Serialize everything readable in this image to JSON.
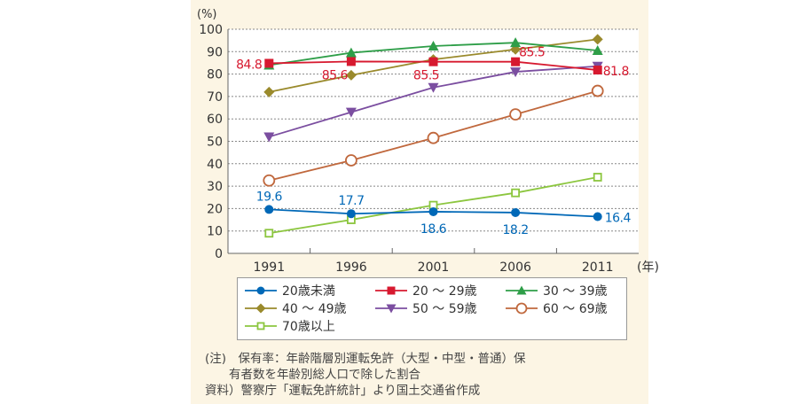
{
  "chart_data": {
    "type": "line",
    "y_unit_label": "(%)",
    "x_unit_label": "(年)",
    "categories": [
      "1991",
      "1996",
      "2001",
      "2006",
      "2011"
    ],
    "ylim": [
      0,
      100
    ],
    "yticks": [
      0,
      10,
      20,
      30,
      40,
      50,
      60,
      70,
      80,
      90,
      100
    ],
    "grid": "horizontal dotted",
    "legend_placement": "bottom",
    "series": [
      {
        "name": "20歳未満",
        "values": [
          19.6,
          17.7,
          18.6,
          18.2,
          16.4
        ],
        "color": "#0068b7",
        "marker": "circle-filled",
        "labels": [
          "19.6",
          "17.7",
          "18.6",
          "18.2",
          "16.4"
        ]
      },
      {
        "name": "20 〜 29歳",
        "values": [
          84.8,
          85.6,
          85.5,
          85.5,
          81.8
        ],
        "color": "#d7192f",
        "marker": "square-filled",
        "labels": [
          "84.8",
          "85.6",
          "85.5",
          "85.5",
          "81.8"
        ]
      },
      {
        "name": "30 〜 39歳",
        "values": [
          84,
          89.5,
          92.5,
          94,
          90.5
        ],
        "color": "#2e9e48",
        "marker": "triangle-up"
      },
      {
        "name": "40 〜 49歳",
        "values": [
          72,
          79.5,
          86.5,
          91,
          95.5
        ],
        "color": "#9a8a2c",
        "marker": "diamond"
      },
      {
        "name": "50 〜 59歳",
        "values": [
          52,
          63,
          74,
          81,
          83.5
        ],
        "color": "#7b4ea0",
        "marker": "triangle-down"
      },
      {
        "name": "60 〜 69歳",
        "values": [
          32.5,
          41.5,
          51.5,
          62,
          72.5
        ],
        "color": "#c0683d",
        "marker": "circle-open"
      },
      {
        "name": "70歳以上",
        "values": [
          9,
          15,
          21.5,
          27,
          34
        ],
        "color": "#8cc63f",
        "marker": "square-open"
      }
    ]
  },
  "notes": {
    "line1": "(注)　保有率：年齢階層別運転免許（大型・中型・普通）保",
    "line2": "　　有者数を年齢別総人口で除した割合",
    "line3": "資料）警察庁「運転免許統計」より国土交通省作成"
  }
}
